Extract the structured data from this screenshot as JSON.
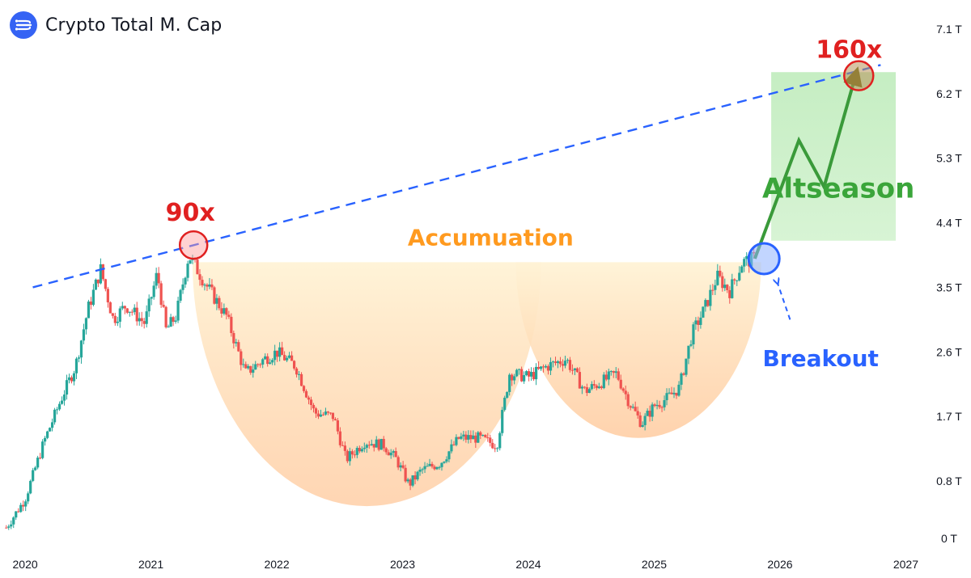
{
  "header": {
    "title": "Crypto Total M. Cap",
    "logo_icon": "crypto-flow-icon"
  },
  "chart_data": {
    "type": "candlestick",
    "title": "Crypto Total M. Cap",
    "x_ticks": [
      "2020",
      "2021",
      "2022",
      "2023",
      "2024",
      "2025",
      "2026",
      "2027"
    ],
    "y_ticks": [
      "0 T",
      "0.8 T",
      "1.7 T",
      "2.6 T",
      "3.5 T",
      "4.4 T",
      "5.3 T",
      "6.2 T",
      "7.1 T"
    ],
    "y_tick_values": [
      0,
      0.8,
      1.7,
      2.6,
      3.5,
      4.4,
      5.3,
      6.2,
      7.1
    ],
    "xlim": [
      2019.8,
      2027.1
    ],
    "ylim": [
      0,
      7.1
    ],
    "colors": {
      "up": "#26a69a",
      "down": "#ef5350",
      "trendline": "#2962ff",
      "accumulation": "#ffd9a0",
      "target_zone": "#a5e3a0",
      "arrow": "#3a9a3a"
    },
    "price_path": [
      [
        2019.85,
        0.15
      ],
      [
        2020.0,
        0.55
      ],
      [
        2020.15,
        1.35
      ],
      [
        2020.3,
        2.0
      ],
      [
        2020.4,
        2.4
      ],
      [
        2020.5,
        3.2
      ],
      [
        2020.6,
        3.75
      ],
      [
        2020.7,
        3.05
      ],
      [
        2020.8,
        3.25
      ],
      [
        2020.95,
        3.0
      ],
      [
        2021.05,
        3.7
      ],
      [
        2021.12,
        2.9
      ],
      [
        2021.2,
        3.1
      ],
      [
        2021.3,
        3.95
      ],
      [
        2021.45,
        3.5
      ],
      [
        2021.6,
        3.1
      ],
      [
        2021.75,
        2.3
      ],
      [
        2021.9,
        2.5
      ],
      [
        2022.0,
        2.6
      ],
      [
        2022.15,
        2.4
      ],
      [
        2022.3,
        1.75
      ],
      [
        2022.45,
        1.7
      ],
      [
        2022.55,
        1.1
      ],
      [
        2022.7,
        1.35
      ],
      [
        2022.85,
        1.3
      ],
      [
        2022.95,
        1.1
      ],
      [
        2023.05,
        0.75
      ],
      [
        2023.15,
        0.95
      ],
      [
        2023.3,
        1.05
      ],
      [
        2023.45,
        1.4
      ],
      [
        2023.6,
        1.4
      ],
      [
        2023.75,
        1.3
      ],
      [
        2023.85,
        2.3
      ],
      [
        2024.0,
        2.25
      ],
      [
        2024.15,
        2.4
      ],
      [
        2024.3,
        2.5
      ],
      [
        2024.45,
        2.05
      ],
      [
        2024.6,
        2.2
      ],
      [
        2024.7,
        2.3
      ],
      [
        2024.8,
        1.9
      ],
      [
        2024.9,
        1.6
      ],
      [
        2025.0,
        1.85
      ],
      [
        2025.1,
        1.95
      ],
      [
        2025.2,
        2.1
      ],
      [
        2025.3,
        2.85
      ],
      [
        2025.4,
        3.2
      ],
      [
        2025.5,
        3.65
      ],
      [
        2025.6,
        3.45
      ],
      [
        2025.7,
        3.85
      ],
      [
        2025.8,
        3.9
      ]
    ],
    "trendline": {
      "from": [
        2019.9,
        3.5
      ],
      "to": [
        2026.8,
        6.6
      ]
    },
    "annotations": {
      "peak_2021": {
        "label": "90x",
        "x": 2021.3,
        "y": 4.0
      },
      "target": {
        "label": "160x",
        "x": 2026.6,
        "y": 6.45
      },
      "accumulation": {
        "label": "Accumuation",
        "x": 2023.7,
        "y": 4.2
      },
      "altseason": {
        "label": "Altseason",
        "x": 2026.4,
        "y": 4.75
      },
      "breakout": {
        "label": "Breakout",
        "x": 2025.95,
        "y": 3.9
      }
    },
    "projection_path": [
      [
        2025.8,
        3.9
      ],
      [
        2026.15,
        5.55
      ],
      [
        2026.35,
        4.9
      ],
      [
        2026.6,
        6.45
      ]
    ]
  }
}
